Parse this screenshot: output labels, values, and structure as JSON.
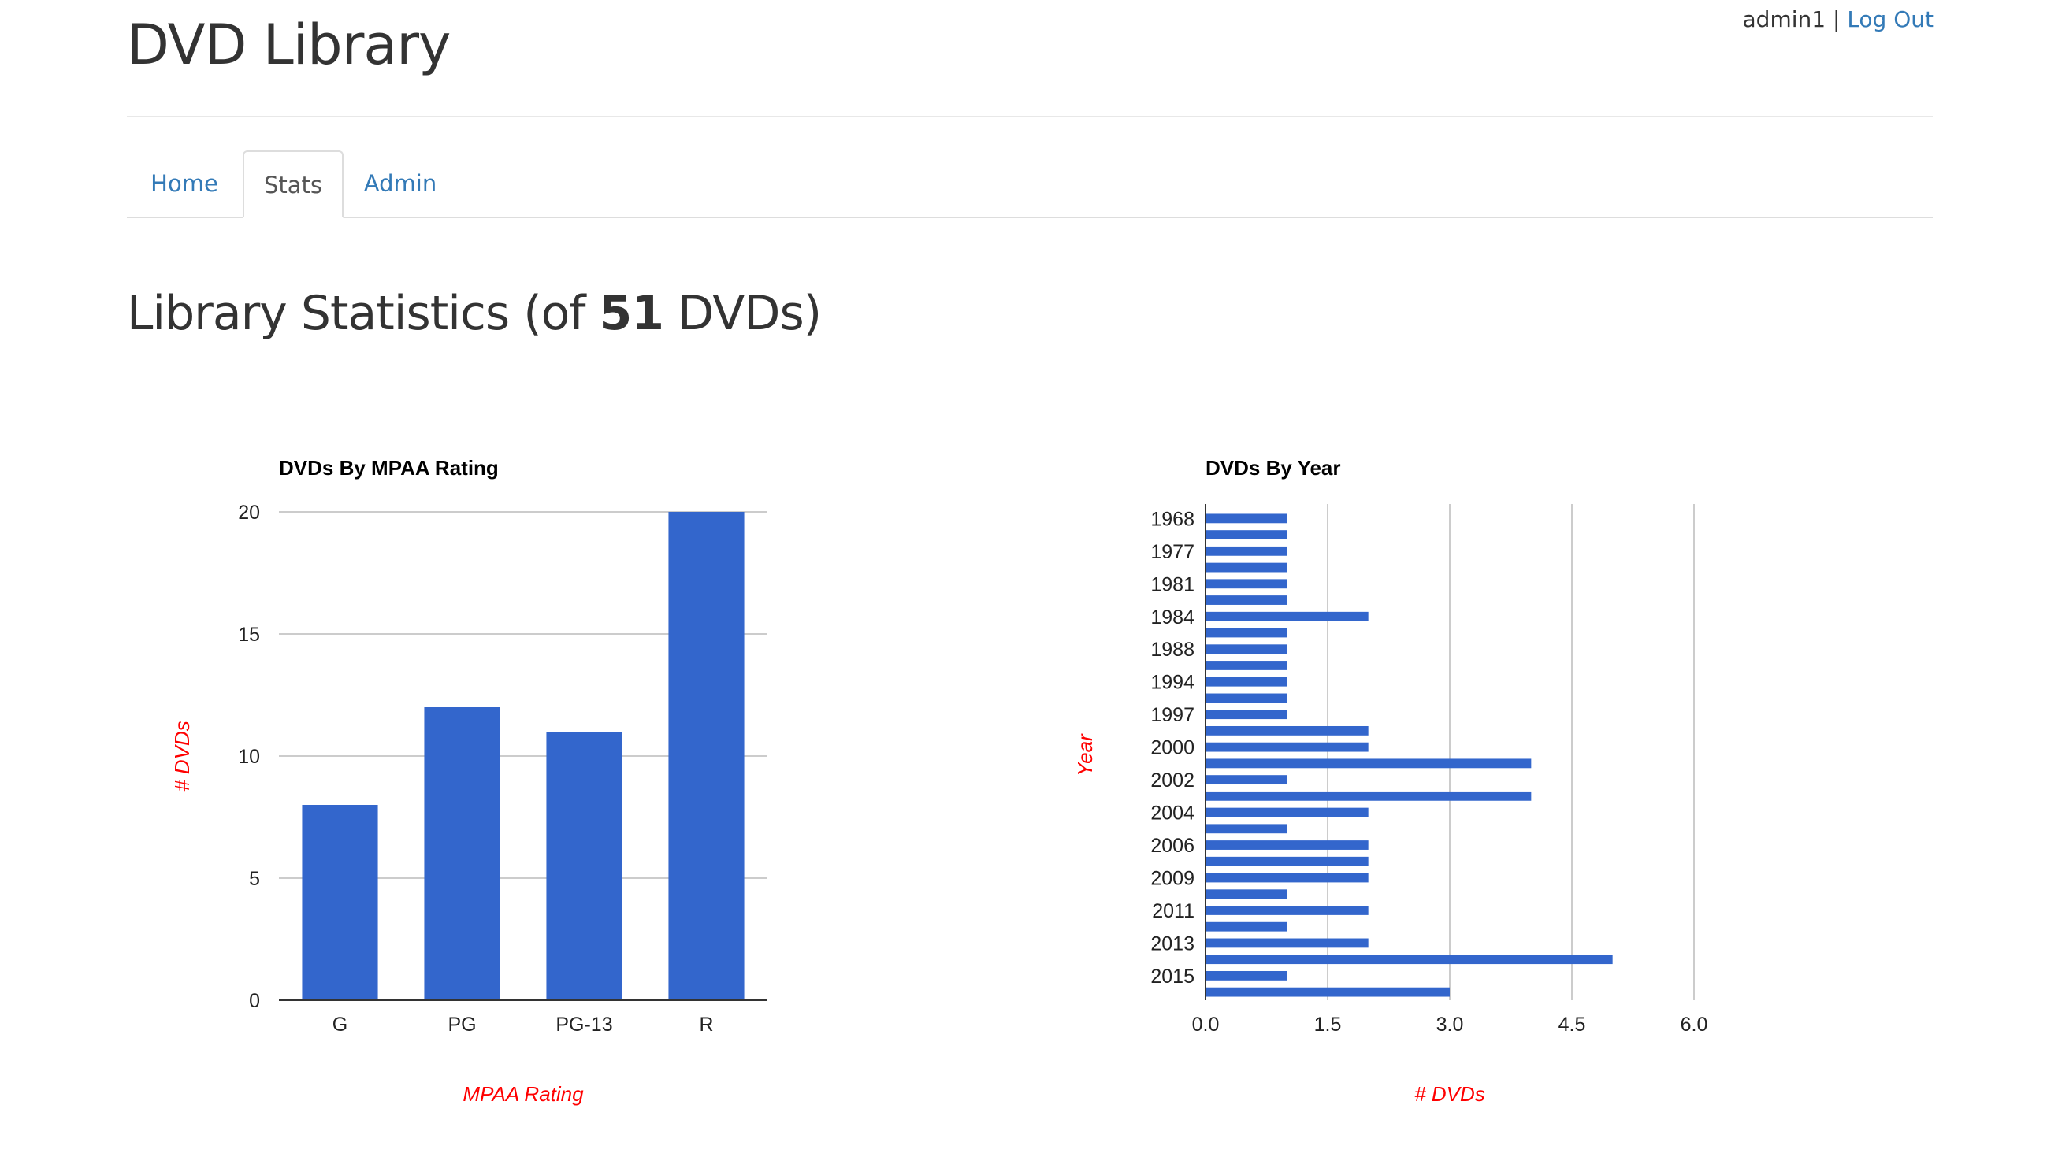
{
  "app": {
    "title": "DVD Library",
    "user": "admin1",
    "separator": "|",
    "logout_label": "Log Out"
  },
  "nav": {
    "tabs": [
      {
        "label": "Home",
        "active": false
      },
      {
        "label": "Stats",
        "active": true
      },
      {
        "label": "Admin",
        "active": false
      }
    ]
  },
  "heading": {
    "prefix": "Library Statistics (of ",
    "count": "51",
    "suffix": " DVDs)"
  },
  "colors": {
    "bar": "#3366cc",
    "axis_title": "#ff0000",
    "link": "#337ab7",
    "grid": "#cccccc"
  },
  "chart_data": [
    {
      "type": "bar",
      "title": "DVDs By MPAA Rating",
      "xlabel": "MPAA Rating",
      "ylabel": "# DVDs",
      "categories": [
        "G",
        "PG",
        "PG-13",
        "R"
      ],
      "values": [
        8,
        12,
        11,
        20
      ],
      "ylim": [
        0,
        20
      ],
      "yticks": [
        "0",
        "5",
        "10",
        "15",
        "20"
      ],
      "grid": true
    },
    {
      "type": "bar",
      "orientation": "horizontal",
      "title": "DVDs By Year",
      "xlabel": "# DVDs",
      "ylabel": "Year",
      "categories": [
        "1968",
        "",
        "1977",
        "",
        "1981",
        "",
        "1984",
        "",
        "1988",
        "",
        "1994",
        "",
        "1997",
        "",
        "2000",
        "",
        "2002",
        "",
        "2004",
        "",
        "2006",
        "",
        "2009",
        "",
        "2011",
        "",
        "2013",
        "",
        "2015",
        ""
      ],
      "values": [
        1,
        1,
        1,
        1,
        1,
        1,
        2,
        1,
        1,
        1,
        1,
        1,
        1,
        2,
        2,
        4,
        1,
        4,
        2,
        1,
        2,
        2,
        2,
        1,
        2,
        1,
        2,
        5,
        1,
        3
      ],
      "xlim": [
        0,
        6
      ],
      "xticks": [
        "0.0",
        "1.5",
        "3.0",
        "4.5",
        "6.0"
      ],
      "grid": true
    }
  ]
}
